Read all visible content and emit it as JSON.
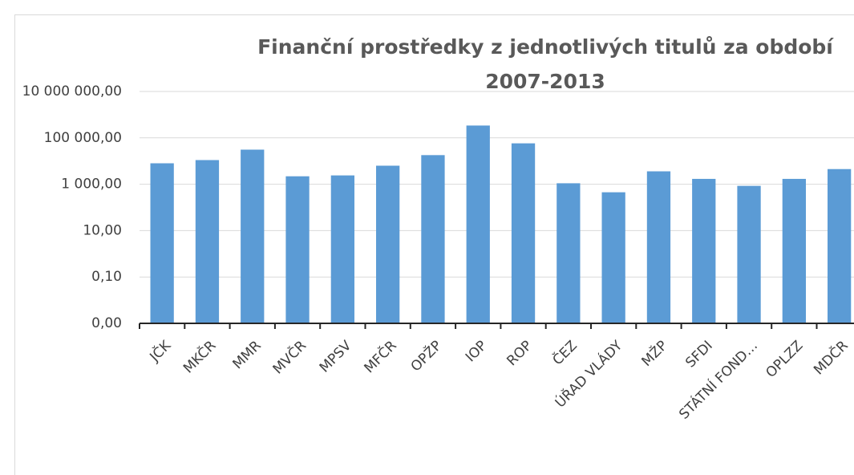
{
  "chart_data": {
    "type": "bar",
    "title": [
      "Finanční prostředky z jednotlivých titulů za období",
      "2007-2013"
    ],
    "categories": [
      "JČK",
      "MKČR",
      "MMR",
      "MVČR",
      "MPSV",
      "MFČR",
      "OPŽP",
      "IOP",
      "ROP",
      "ČEZ",
      "ÚŘAD VLÁDY",
      "MŽP",
      "SFDI",
      "STÁTNÍ FOND…",
      "OPLZZ",
      "MDČR"
    ],
    "values": [
      8000,
      11000,
      31000,
      2200,
      2400,
      6300,
      18000,
      340000,
      58000,
      1100,
      450,
      3600,
      1700,
      850,
      1700,
      4500
    ],
    "color": "#5b9bd5",
    "log_scale": true,
    "ylim": [
      0.001,
      10000000
    ],
    "yticks": [
      {
        "value": 0.001,
        "label": "0,00"
      },
      {
        "value": 0.1,
        "label": "0,10"
      },
      {
        "value": 10,
        "label": "10,00"
      },
      {
        "value": 1000,
        "label": "1 000,00"
      },
      {
        "value": 100000,
        "label": "100 000,00"
      },
      {
        "value": 10000000,
        "label": "10 000 000,00"
      }
    ],
    "grid": true
  }
}
